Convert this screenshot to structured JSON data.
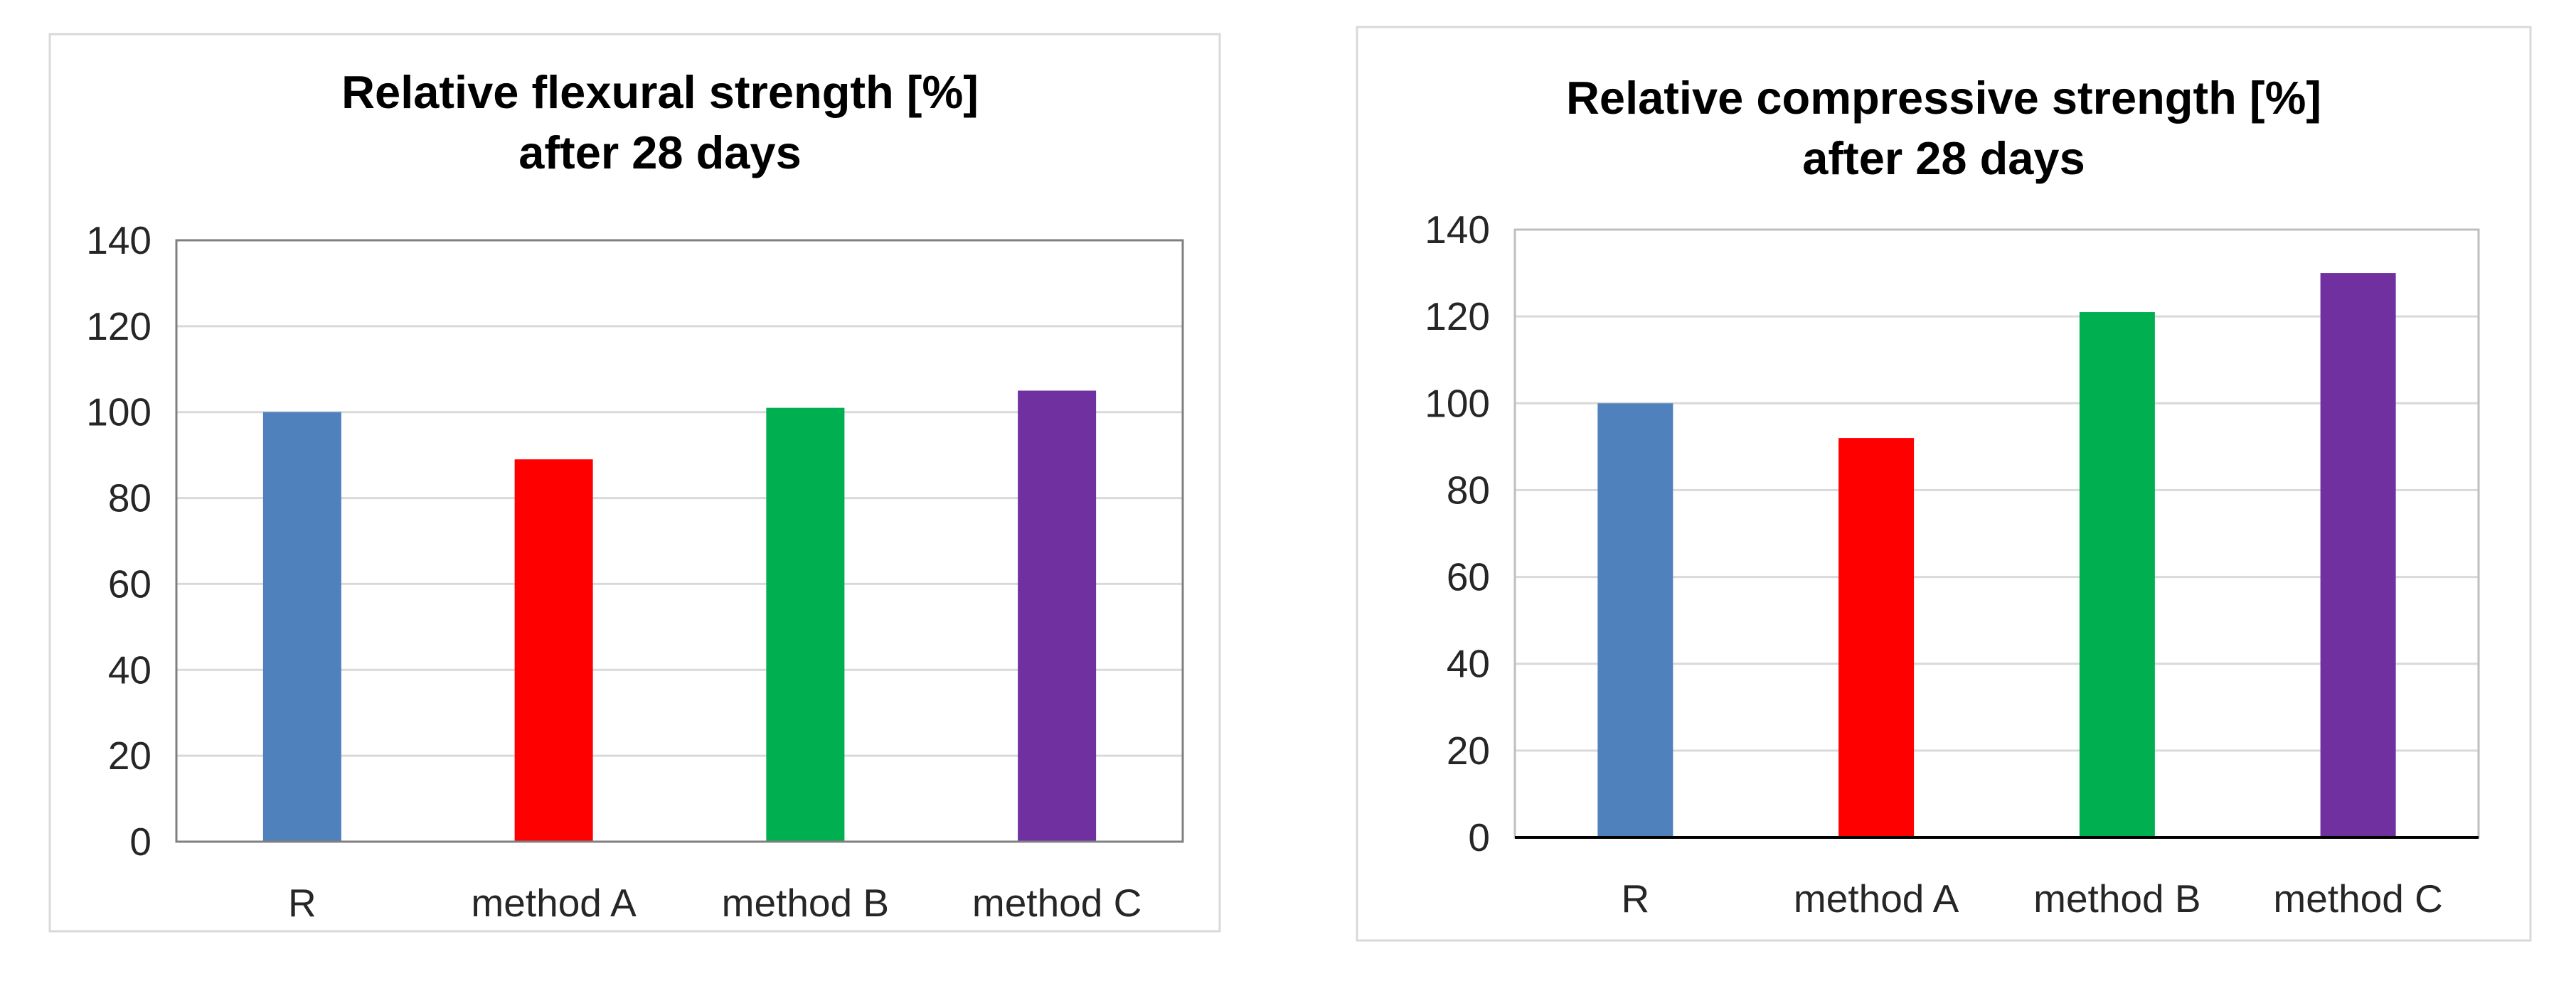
{
  "chart_data": [
    {
      "type": "bar",
      "title_lines": [
        "Relative flexural strength [%]",
        "after 28 days"
      ],
      "categories": [
        "R",
        "method A",
        "method B",
        "method C"
      ],
      "values": [
        100,
        89,
        101,
        105
      ],
      "colors": [
        "#4f81bd",
        "#ff0000",
        "#00b050",
        "#7030a0"
      ],
      "ylim": [
        0,
        140
      ],
      "yticks": [
        0,
        20,
        40,
        60,
        80,
        100,
        120,
        140
      ],
      "xlabel": "",
      "ylabel": "",
      "grid": true,
      "legend": "none"
    },
    {
      "type": "bar",
      "title_lines": [
        "Relative compressive strength [%]",
        "after 28 days"
      ],
      "categories": [
        "R",
        "method A",
        "method B",
        "method C"
      ],
      "values": [
        100,
        92,
        121,
        130
      ],
      "colors": [
        "#4f81bd",
        "#ff0000",
        "#00b050",
        "#7030a0"
      ],
      "ylim": [
        0,
        140
      ],
      "yticks": [
        0,
        20,
        40,
        60,
        80,
        100,
        120,
        140
      ],
      "xlabel": "",
      "ylabel": "",
      "grid": true,
      "legend": "none"
    }
  ]
}
